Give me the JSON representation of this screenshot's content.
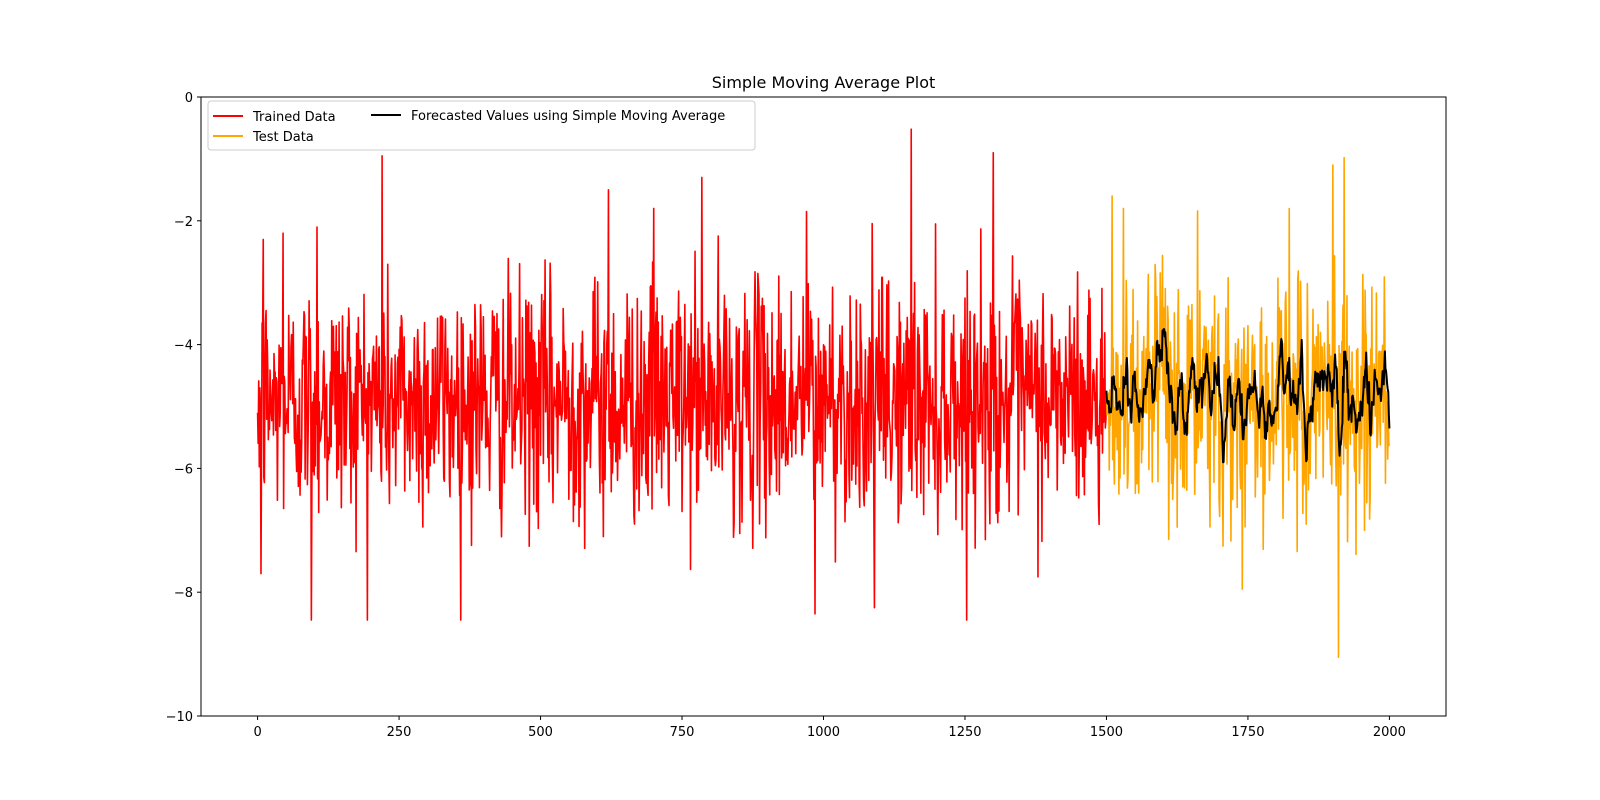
{
  "chart_data": {
    "type": "line",
    "title": "Simple Moving Average Plot",
    "xlabel": "",
    "ylabel": "",
    "xlim": [
      -100,
      2100
    ],
    "ylim": [
      -10,
      0
    ],
    "x_ticks": [
      0,
      250,
      500,
      750,
      1000,
      1250,
      1500,
      1750,
      2000
    ],
    "y_ticks": [
      0,
      -2,
      -4,
      -6,
      -8,
      -10
    ],
    "grid": false,
    "legend_placement": "top-left",
    "series": [
      {
        "name": "Trained Data",
        "color": "#ff0000",
        "x_range": [
          0,
          1500
        ],
        "mean": -4.9,
        "std": 0.95,
        "min": -8.45,
        "max": -0.52,
        "approx_points": [
          [
            0,
            -5.1
          ],
          [
            6,
            -7.7
          ],
          [
            10,
            -2.3
          ],
          [
            30,
            -4.5
          ],
          [
            45,
            -2.2
          ],
          [
            95,
            -8.45
          ],
          [
            105,
            -2.1
          ],
          [
            220,
            -0.95
          ],
          [
            400,
            -4.9
          ],
          [
            620,
            -1.5
          ],
          [
            700,
            -1.8
          ],
          [
            785,
            -1.3
          ],
          [
            970,
            -1.85
          ],
          [
            985,
            -8.35
          ],
          [
            1090,
            -8.25
          ],
          [
            1155,
            -0.52
          ],
          [
            1300,
            -0.9
          ],
          [
            1450,
            -4.9
          ],
          [
            1500,
            -4.8
          ]
        ]
      },
      {
        "name": "Test Data",
        "color": "#ffa500",
        "x_range": [
          1500,
          2000
        ],
        "mean": -4.9,
        "std": 1.0,
        "min": -9.05,
        "max": -0.98,
        "approx_points": [
          [
            1500,
            -4.8
          ],
          [
            1510,
            -1.6
          ],
          [
            1530,
            -1.8
          ],
          [
            1740,
            -7.95
          ],
          [
            1900,
            -1.1
          ],
          [
            1910,
            -9.05
          ],
          [
            1920,
            -0.98
          ],
          [
            2000,
            -5.6
          ]
        ]
      },
      {
        "name": "Forecasted Values using Simple Moving Average",
        "color": "#000000",
        "x_range": [
          1500,
          2000
        ],
        "mean": -4.85,
        "std": 0.35,
        "min": -5.9,
        "max": -3.75
      }
    ]
  }
}
